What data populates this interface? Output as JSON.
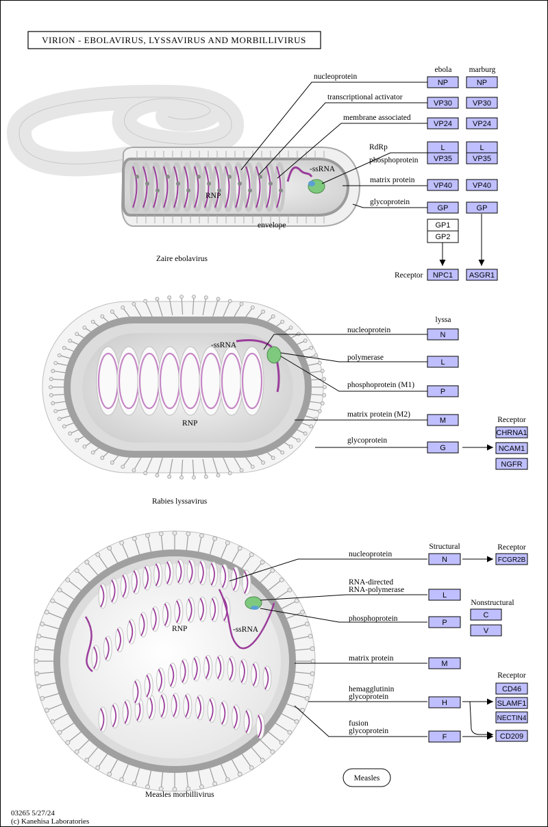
{
  "title": "VIRION - EBOLAVIRUS, LYSSAVIRUS AND MORBILLIVIRUS",
  "footer": {
    "id_date": "03265 5/27/24",
    "copyright": "(c) Kanehisa Laboratories"
  },
  "ebola": {
    "name": "Zaire ebolavirus",
    "col_ebola": "ebola",
    "col_marburg": "marburg",
    "in_labels": {
      "ssrna": "-ssRNA",
      "rnp": "RNP",
      "envelope": "envelope"
    },
    "proteins": [
      {
        "label": "nucleoprotein",
        "ebola": "NP",
        "marburg": "NP"
      },
      {
        "label": "transcriptional activator",
        "ebola": "VP30",
        "marburg": "VP30"
      },
      {
        "label": "membrane associated",
        "ebola": "VP24",
        "marburg": "VP24"
      },
      {
        "label": "RdRp",
        "ebola": "L",
        "marburg": "L"
      },
      {
        "label": "phosphoprotein",
        "ebola": "VP35",
        "marburg": "VP35"
      },
      {
        "label": "matrix protein",
        "ebola": "VP40",
        "marburg": "VP40"
      },
      {
        "label": "glycoprotein",
        "ebola": "GP",
        "marburg": "GP"
      }
    ],
    "gp_subunits": [
      "GP1",
      "GP2"
    ],
    "receptor_label": "Receptor",
    "receptors": [
      "NPC1",
      "ASGR1"
    ]
  },
  "rabies": {
    "name": "Rabies lyssavirus",
    "col": "lyssa",
    "in_labels": {
      "ssrna": "-ssRNA",
      "rnp": "RNP"
    },
    "proteins": [
      {
        "label": "nucleoprotein",
        "gene": "N"
      },
      {
        "label": "polymerase",
        "gene": "L"
      },
      {
        "label": "phosphoprotein (M1)",
        "gene": "P"
      },
      {
        "label": "matrix protein (M2)",
        "gene": "M"
      },
      {
        "label": "glycoprotein",
        "gene": "G"
      }
    ],
    "receptor_label": "Receptor",
    "receptors": [
      "CHRNA1",
      "NCAM1",
      "NGFR"
    ]
  },
  "measles": {
    "name": "Measles morbillivirus",
    "col_structural": "Structural",
    "col_nonstructural": "Nonstructural",
    "in_labels": {
      "ssrna": "-ssRNA",
      "rnp": "RNP"
    },
    "proteins": [
      {
        "label": "nucleoprotein",
        "gene": "N"
      },
      {
        "label": "RNA-directed",
        "label2": "RNA-polymerase",
        "gene": "L"
      },
      {
        "label": "phosphoprotein",
        "gene": "P"
      },
      {
        "label": "matrix protein",
        "gene": "M"
      },
      {
        "label": "hemagglutinin",
        "label2": "glycoprotein",
        "gene": "H"
      },
      {
        "label": "fusion",
        "label2": "glycoprotein",
        "gene": "F"
      }
    ],
    "nonstructural": [
      "C",
      "V"
    ],
    "receptor_n_label": "Receptor",
    "receptor_n": "FCGR2B",
    "receptor_h_label": "Receptor",
    "receptors_h": [
      "CD46",
      "SLAMF1",
      "NECTIN4",
      "CD209"
    ],
    "map_link": "Measles"
  },
  "colors": {
    "gene_fill": "#bfbfff",
    "rna": "#9a3c9a",
    "membrane": "#a8a8a8",
    "polymerase": "#7fc97f",
    "phospho": "#5a9fd6"
  }
}
